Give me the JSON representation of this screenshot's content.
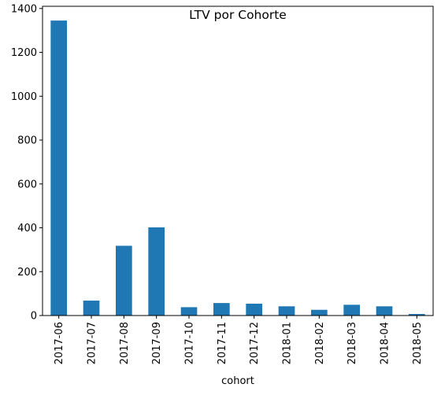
{
  "chart_data": {
    "type": "bar",
    "title": "LTV por Cohorte",
    "xlabel": "cohort",
    "ylabel": "",
    "categories": [
      "2017-06",
      "2017-07",
      "2017-08",
      "2017-09",
      "2017-10",
      "2017-11",
      "2017-12",
      "2018-01",
      "2018-02",
      "2018-03",
      "2018-04",
      "2018-05"
    ],
    "values": [
      1345,
      68,
      318,
      402,
      38,
      57,
      54,
      42,
      26,
      49,
      42,
      7
    ],
    "ylim": [
      0,
      1410
    ],
    "yticks": [
      0,
      200,
      400,
      600,
      800,
      1000,
      1200,
      1400
    ],
    "bar_color": "#1f77b4",
    "grid": false,
    "legend": "none"
  }
}
